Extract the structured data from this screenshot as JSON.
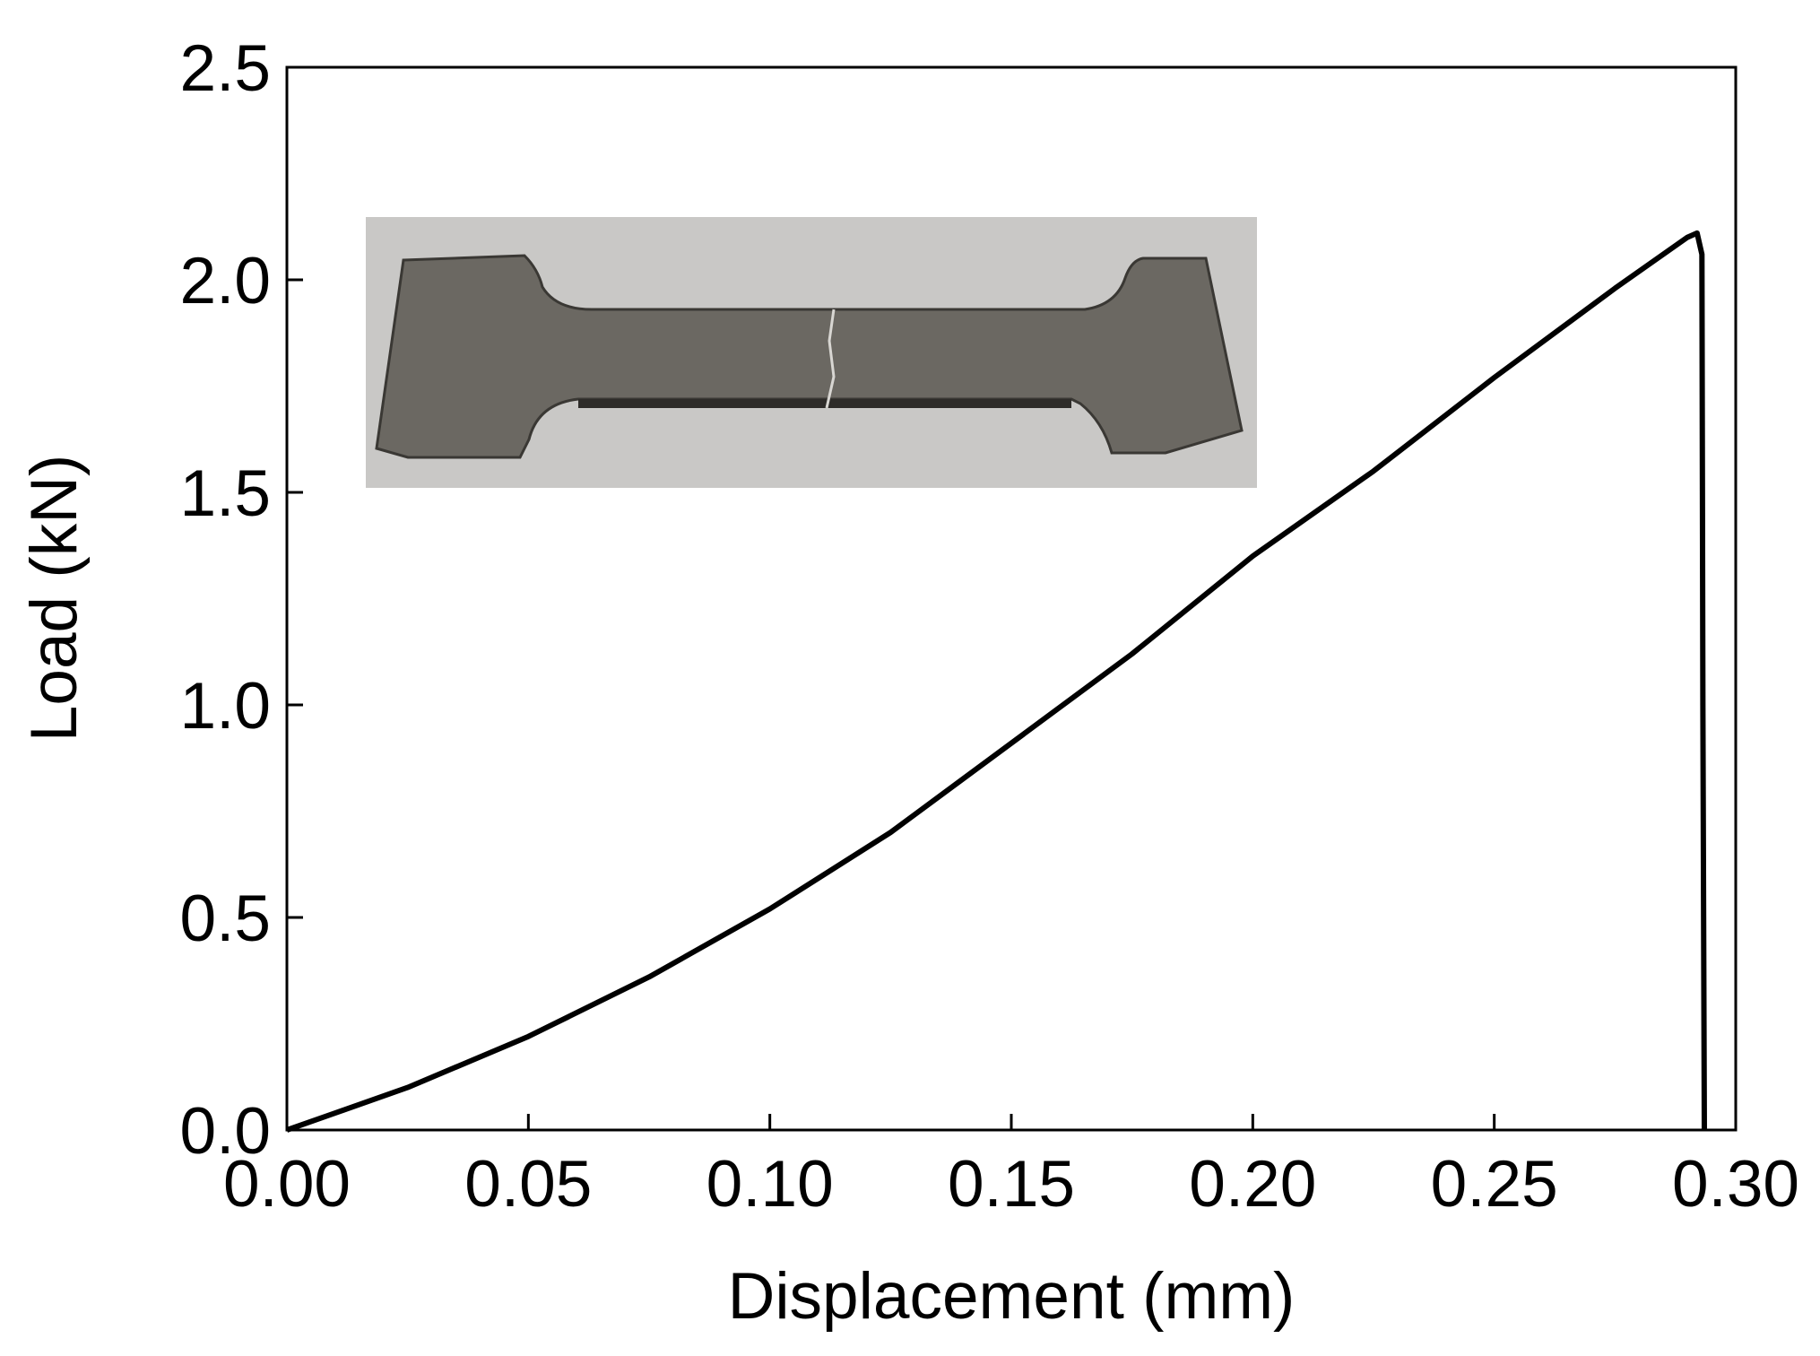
{
  "chart_data": {
    "type": "line",
    "x_label": "Displacement (mm)",
    "y_label": "Load (kN)",
    "xlim": [
      0,
      0.3
    ],
    "ylim": [
      0,
      2.5
    ],
    "xticks": [
      {
        "value": 0,
        "label": "0.00"
      },
      {
        "value": 0.05,
        "label": "0.05"
      },
      {
        "value": 0.1,
        "label": "0.10"
      },
      {
        "value": 0.15,
        "label": "0.15"
      },
      {
        "value": 0.2,
        "label": "0.20"
      },
      {
        "value": 0.25,
        "label": "0.25"
      },
      {
        "value": 0.3,
        "label": "0.30"
      }
    ],
    "yticks": [
      {
        "value": 0,
        "label": "0.0"
      },
      {
        "value": 0.5,
        "label": "0.5"
      },
      {
        "value": 1,
        "label": "1.0"
      },
      {
        "value": 1.5,
        "label": "1.5"
      },
      {
        "value": 2,
        "label": "2.0"
      },
      {
        "value": 2.5,
        "label": "2.5"
      }
    ],
    "series": [
      {
        "color": "#000000",
        "x": [
          0,
          0.01,
          0.025,
          0.05,
          0.075,
          0.1,
          0.125,
          0.15,
          0.175,
          0.2,
          0.225,
          0.25,
          0.275,
          0.29,
          0.292,
          0.293,
          0.2932,
          0.2935
        ],
        "values": [
          0,
          0.04,
          0.1,
          0.22,
          0.36,
          0.52,
          0.7,
          0.91,
          1.12,
          1.35,
          1.55,
          1.77,
          1.98,
          2.1,
          2.11,
          2.06,
          1.0,
          0
        ]
      }
    ]
  }
}
